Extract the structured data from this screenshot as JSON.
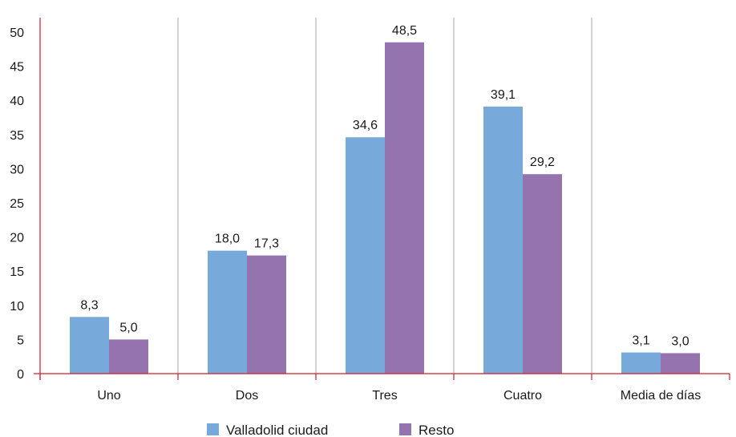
{
  "chart_data": {
    "type": "bar",
    "categories": [
      "Uno",
      "Dos",
      "Tres",
      "Cuatro",
      "Media de días"
    ],
    "series": [
      {
        "name": "Valladolid ciudad",
        "values": [
          8.3,
          18.0,
          34.6,
          39.1,
          3.1
        ],
        "labels": [
          "8,3",
          "18,0",
          "34,6",
          "39,1",
          "3,1"
        ],
        "color": "#77a9db"
      },
      {
        "name": "Resto",
        "values": [
          5.0,
          17.3,
          48.5,
          29.2,
          3.0
        ],
        "labels": [
          "5,0",
          "17,3",
          "48,5",
          "29,2",
          "3,0"
        ],
        "color": "#9473ae"
      }
    ],
    "y_ticks": [
      0,
      5,
      10,
      15,
      20,
      25,
      30,
      35,
      40,
      45,
      50
    ],
    "ylim": [
      0,
      50
    ],
    "axis_color": "#cc1f2c",
    "separator_color": "#a6a6a6",
    "gridlines": false,
    "legend_position": "bottom"
  }
}
